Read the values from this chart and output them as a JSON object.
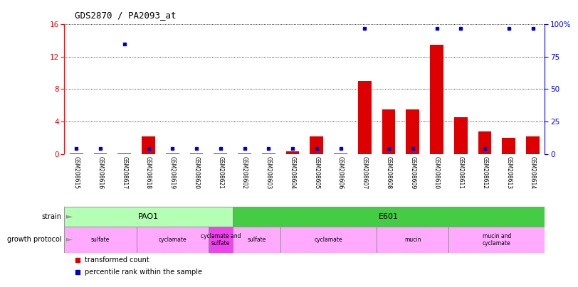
{
  "title": "GDS2870 / PA2093_at",
  "samples": [
    "GSM208615",
    "GSM208616",
    "GSM208617",
    "GSM208618",
    "GSM208619",
    "GSM208620",
    "GSM208621",
    "GSM208602",
    "GSM208603",
    "GSM208604",
    "GSM208605",
    "GSM208606",
    "GSM208607",
    "GSM208608",
    "GSM208609",
    "GSM208610",
    "GSM208611",
    "GSM208612",
    "GSM208613",
    "GSM208614"
  ],
  "transformed_count": [
    0.05,
    0.05,
    0.05,
    2.2,
    0.05,
    0.05,
    0.05,
    0.05,
    0.05,
    0.3,
    2.2,
    0.05,
    9.0,
    5.5,
    5.5,
    13.5,
    4.5,
    2.8,
    2.0,
    2.2
  ],
  "percentile_rank": [
    4,
    4,
    85,
    4,
    4,
    4,
    4,
    4,
    4,
    4,
    4,
    4,
    97,
    4,
    4,
    97,
    97,
    4,
    97,
    97
  ],
  "ylim_left": [
    0,
    16
  ],
  "ylim_right": [
    0,
    100
  ],
  "yticks_left": [
    0,
    4,
    8,
    12,
    16
  ],
  "yticks_right": [
    0,
    25,
    50,
    75,
    100
  ],
  "bar_color": "#dd0000",
  "dot_color": "#0000cc",
  "strain_pao1": {
    "label": "PAO1",
    "start": 0,
    "end": 7,
    "color": "#b3ffb3"
  },
  "strain_e601": {
    "label": "E601",
    "start": 7,
    "end": 20,
    "color": "#44cc44"
  },
  "growth_protocols": [
    {
      "label": "sulfate",
      "start": 0,
      "end": 3,
      "color": "#ffaaff"
    },
    {
      "label": "cyclamate",
      "start": 3,
      "end": 6,
      "color": "#ffaaff"
    },
    {
      "label": "cyclamate and\nsulfate",
      "start": 6,
      "end": 7,
      "color": "#ee44ee"
    },
    {
      "label": "sulfate",
      "start": 7,
      "end": 9,
      "color": "#ffaaff"
    },
    {
      "label": "cyclamate",
      "start": 9,
      "end": 13,
      "color": "#ffaaff"
    },
    {
      "label": "mucin",
      "start": 13,
      "end": 16,
      "color": "#ffaaff"
    },
    {
      "label": "mucin and\ncyclamate",
      "start": 16,
      "end": 20,
      "color": "#ffaaff"
    }
  ],
  "bg_color": "#ffffff",
  "tick_area_color": "#cccccc",
  "arrow_color": "#999999"
}
